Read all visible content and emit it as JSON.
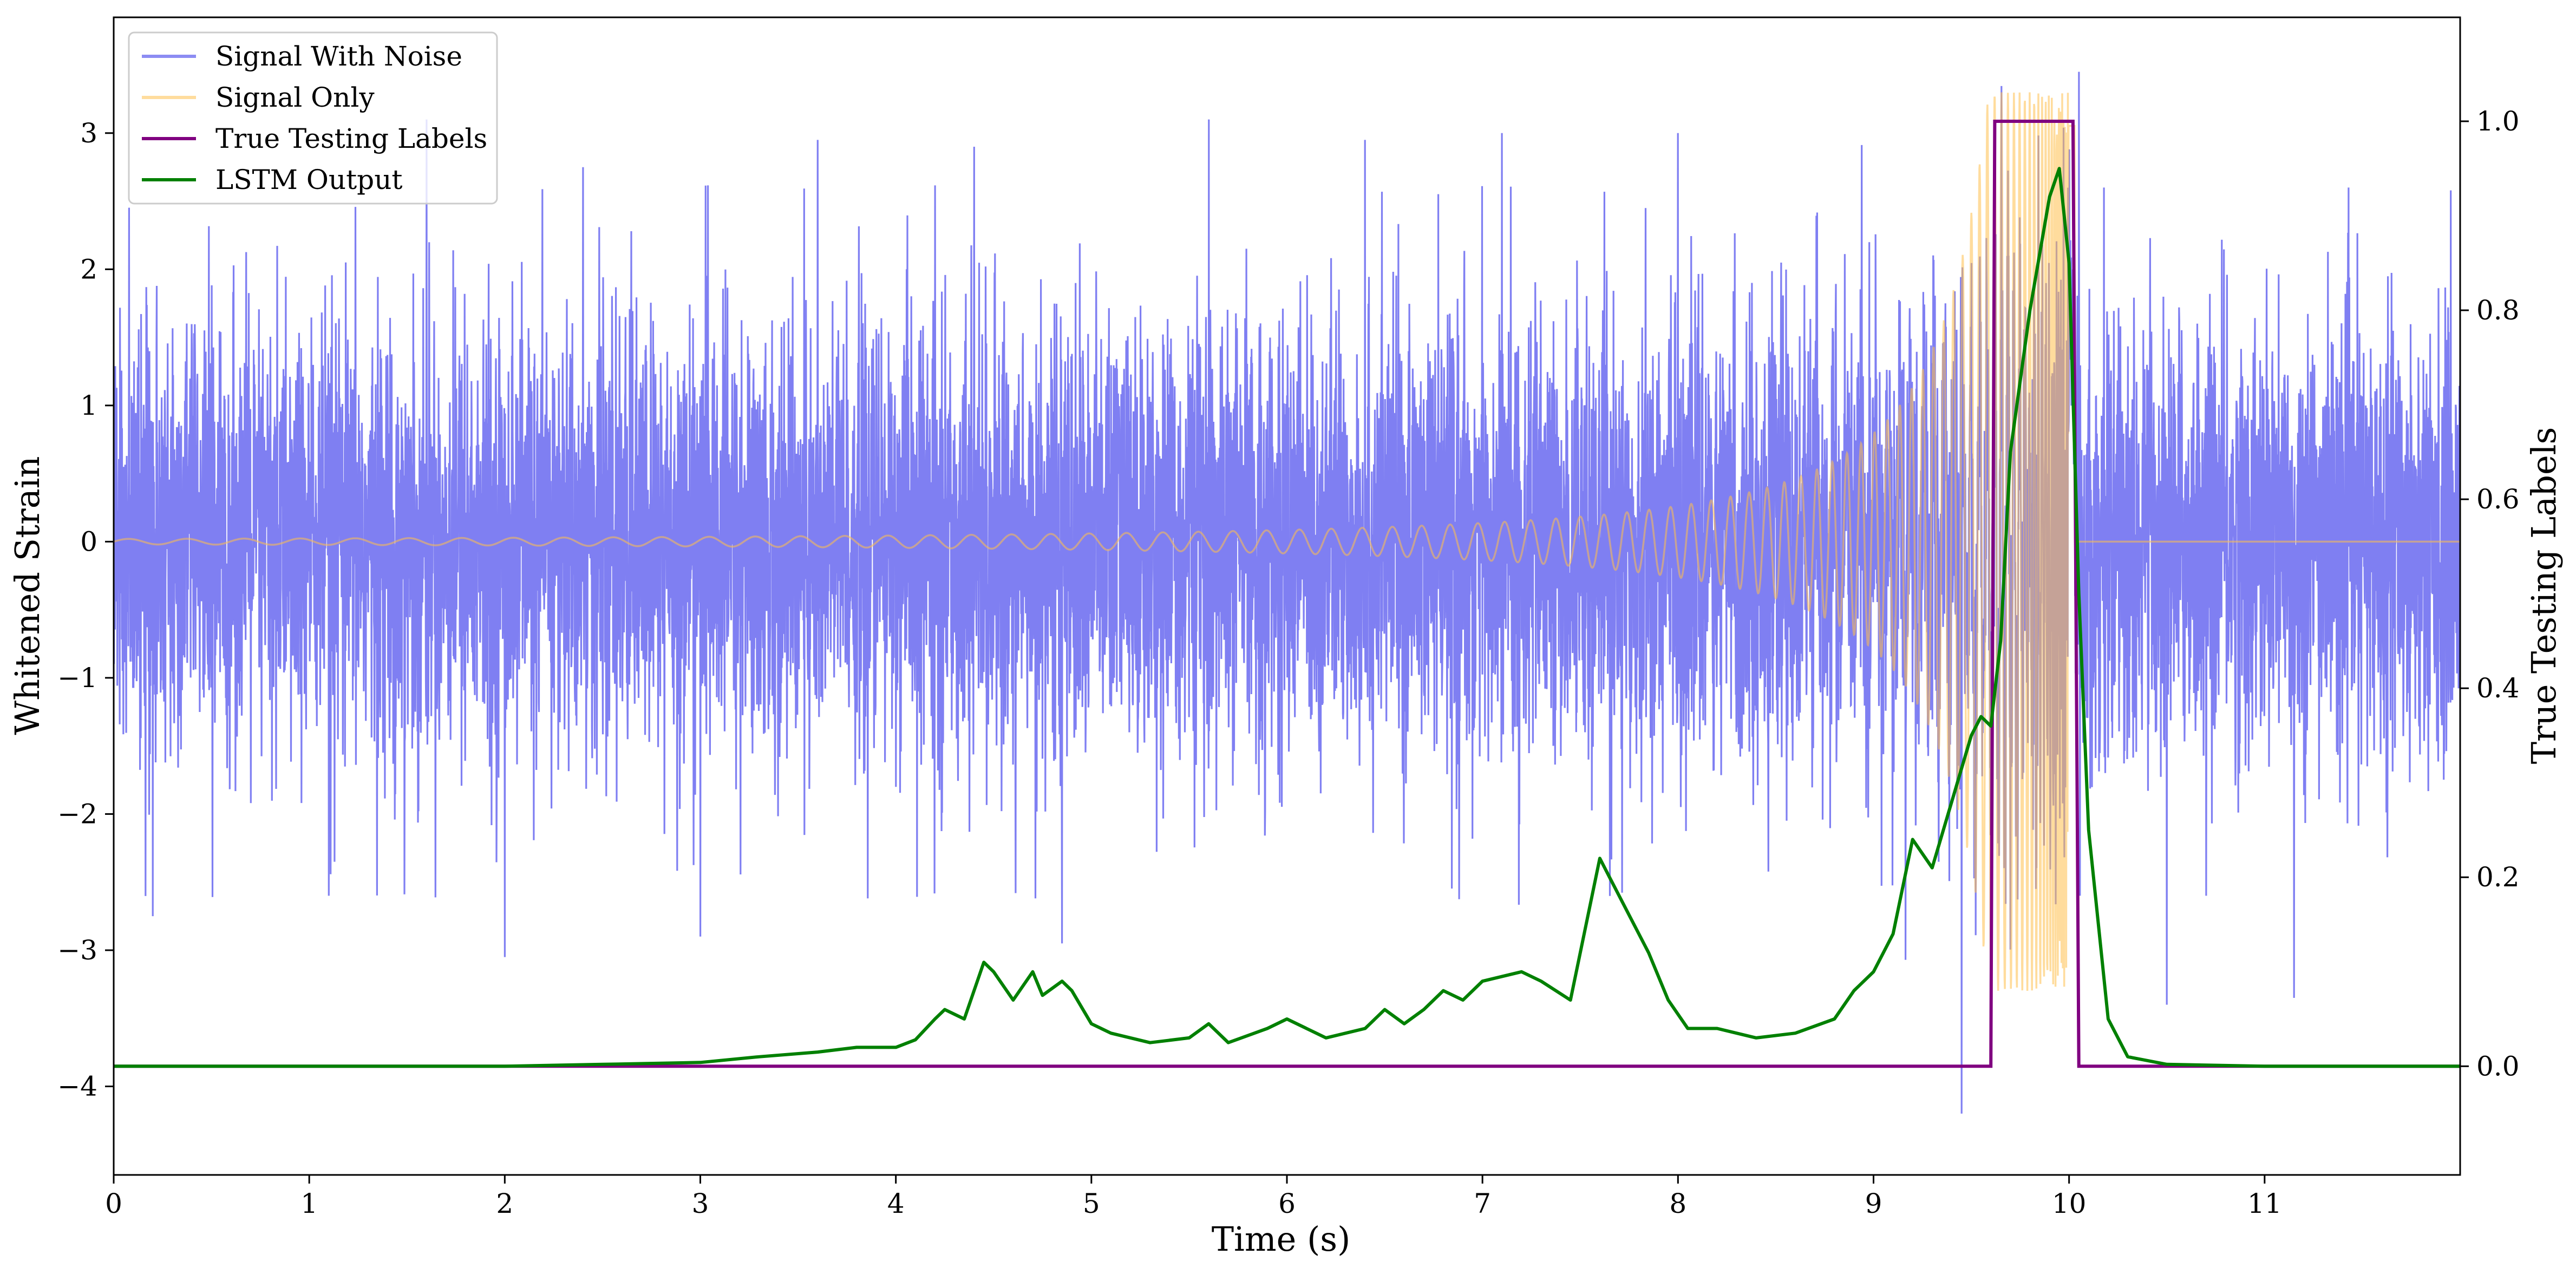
{
  "chart_data": {
    "type": "line",
    "title": "",
    "xlabel": "Time (s)",
    "ylabel_left": "Whitened Strain",
    "ylabel_right": "True Testing Labels",
    "xlim": [
      0,
      12
    ],
    "ylim_left": [
      -4.65,
      3.85
    ],
    "ylim_right": [
      -0.115,
      1.11
    ],
    "x_ticks": [
      0,
      1,
      2,
      3,
      4,
      5,
      6,
      7,
      8,
      9,
      10,
      11
    ],
    "y_ticks_left": [
      -4,
      -3,
      -2,
      -1,
      0,
      1,
      2,
      3
    ],
    "y_ticks_right": [
      0.0,
      0.2,
      0.4,
      0.6,
      0.8,
      1.0
    ],
    "x_tick_labels": [
      "0",
      "1",
      "2",
      "3",
      "4",
      "5",
      "6",
      "7",
      "8",
      "9",
      "10",
      "11"
    ],
    "y_tick_labels_left": [
      "−4",
      "−3",
      "−2",
      "−1",
      "0",
      "1",
      "2",
      "3"
    ],
    "y_tick_labels_right": [
      "0.0",
      "0.2",
      "0.4",
      "0.6",
      "0.8",
      "1.0"
    ],
    "grid": false,
    "legend_position": "top-left",
    "series": [
      {
        "name": "Signal With Noise",
        "axis": "left",
        "color": "#7f7ff2",
        "description_values": {
          "typical_amplitude": 1.0,
          "peak_min": -4.2,
          "peak_max": 3.45
        },
        "notable_peaks": [
          {
            "t": 0.2,
            "v": -2.75
          },
          {
            "t": 1.1,
            "v": -2.6
          },
          {
            "t": 1.6,
            "v": 3.1
          },
          {
            "t": 2.0,
            "v": -3.05
          },
          {
            "t": 2.4,
            "v": 2.75
          },
          {
            "t": 3.0,
            "v": -2.9
          },
          {
            "t": 3.6,
            "v": 2.95
          },
          {
            "t": 4.4,
            "v": 2.9
          },
          {
            "t": 4.85,
            "v": -2.95
          },
          {
            "t": 5.6,
            "v": 3.1
          },
          {
            "t": 6.4,
            "v": 2.95
          },
          {
            "t": 7.1,
            "v": 3.0
          },
          {
            "t": 8.0,
            "v": 3.0
          },
          {
            "t": 9.45,
            "v": -4.2
          },
          {
            "t": 10.05,
            "v": 3.45
          },
          {
            "t": 10.5,
            "v": -3.4
          },
          {
            "t": 11.15,
            "v": -3.35
          }
        ]
      },
      {
        "name": "Signal Only",
        "axis": "left",
        "color": "#ffc04d",
        "description_values": {
          "start_amplitude": 0.02,
          "peak_time": 10.0,
          "peak_amplitude": 3.3,
          "end_time": 10.03
        }
      },
      {
        "name": "True Testing Labels",
        "axis": "right",
        "color": "#800080",
        "x": [
          0,
          9.6,
          9.62,
          10.02,
          10.05,
          12
        ],
        "values": [
          0,
          0,
          1,
          1,
          0,
          0
        ]
      },
      {
        "name": "LSTM Output",
        "axis": "right",
        "color": "#008000",
        "x": [
          0,
          1,
          2,
          2.5,
          3,
          3.3,
          3.6,
          3.8,
          4.0,
          4.1,
          4.2,
          4.25,
          4.35,
          4.45,
          4.5,
          4.6,
          4.7,
          4.75,
          4.85,
          4.9,
          5.0,
          5.1,
          5.3,
          5.5,
          5.6,
          5.7,
          5.9,
          6.0,
          6.2,
          6.4,
          6.5,
          6.6,
          6.7,
          6.8,
          6.9,
          7.0,
          7.2,
          7.3,
          7.45,
          7.6,
          7.65,
          7.75,
          7.85,
          7.95,
          8.05,
          8.2,
          8.4,
          8.6,
          8.8,
          8.9,
          9.0,
          9.1,
          9.2,
          9.3,
          9.4,
          9.5,
          9.55,
          9.6,
          9.65,
          9.7,
          9.8,
          9.9,
          9.95,
          10.0,
          10.05,
          10.1,
          10.2,
          10.3,
          10.5,
          11,
          12
        ],
        "values": [
          0,
          0,
          0.0,
          0.002,
          0.004,
          0.01,
          0.015,
          0.02,
          0.02,
          0.028,
          0.05,
          0.06,
          0.05,
          0.11,
          0.1,
          0.07,
          0.1,
          0.075,
          0.09,
          0.08,
          0.045,
          0.035,
          0.025,
          0.03,
          0.045,
          0.025,
          0.04,
          0.05,
          0.03,
          0.04,
          0.06,
          0.045,
          0.06,
          0.08,
          0.07,
          0.09,
          0.1,
          0.09,
          0.07,
          0.22,
          0.2,
          0.16,
          0.12,
          0.07,
          0.04,
          0.04,
          0.03,
          0.035,
          0.05,
          0.08,
          0.1,
          0.14,
          0.24,
          0.21,
          0.28,
          0.35,
          0.37,
          0.36,
          0.45,
          0.65,
          0.8,
          0.92,
          0.95,
          0.85,
          0.5,
          0.25,
          0.05,
          0.01,
          0.002,
          0,
          0
        ]
      }
    ]
  }
}
